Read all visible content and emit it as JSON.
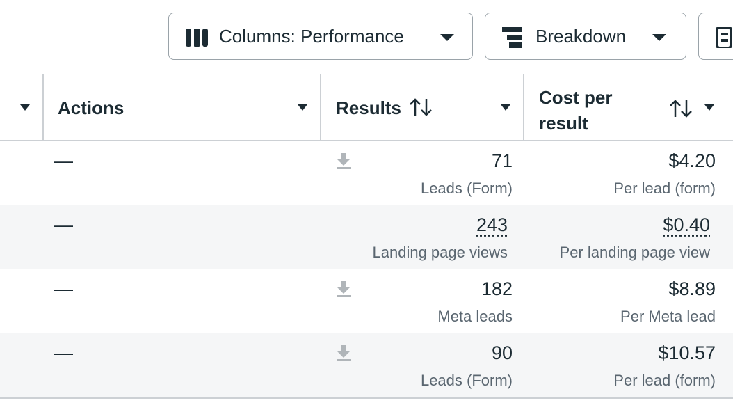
{
  "toolbar": {
    "buttons": [
      "Columns: Performance",
      "Breakdown"
    ]
  },
  "table": {
    "headers": [
      "Actions",
      "Results",
      "Cost per result"
    ],
    "rows": [
      {
        "actions": "—",
        "result": "71",
        "result_label": "Leads (Form)",
        "cost": "$4.20",
        "cost_label": "Per lead (form)"
      },
      {
        "actions": "—",
        "result": "243",
        "result_label": "Landing page views",
        "cost": "$0.40",
        "cost_label": "Per landing page view"
      },
      {
        "actions": "—",
        "result": "182",
        "result_label": "Meta leads",
        "cost": "$8.89",
        "cost_label": "Per Meta lead"
      },
      {
        "actions": "—",
        "result": "90",
        "result_label": "Leads (Form)",
        "cost": "$10.57",
        "cost_label": "Per lead (form)"
      }
    ]
  }
}
